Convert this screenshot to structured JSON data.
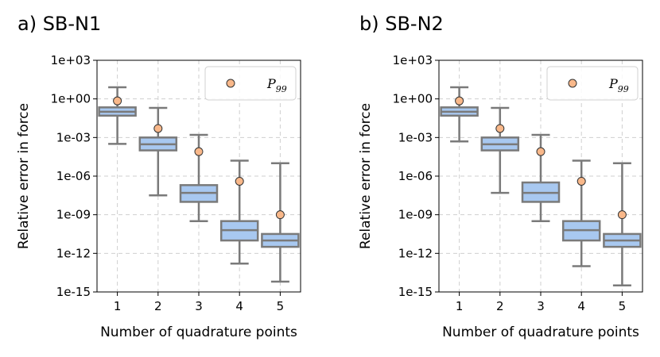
{
  "chart_data": [
    {
      "type": "box",
      "panel_title": "a) SB-N1",
      "xlabel": "Number of quadrature points",
      "ylabel": "Relative error in force",
      "yscale": "log",
      "ylim": [
        1e-15,
        1000.0
      ],
      "y_ticks": [
        "1e+03",
        "1e+00",
        "1e-03",
        "1e-06",
        "1e-09",
        "1e-12",
        "1e-15"
      ],
      "categories": [
        "1",
        "2",
        "3",
        "4",
        "5"
      ],
      "grid": true,
      "legend": {
        "position": "top-right",
        "entries": [
          {
            "label": "P",
            "subscript": "99",
            "marker": "circle"
          }
        ]
      },
      "box_color": "#a8c8f0",
      "edge_color": "#7a7a7a",
      "marker_color": "#f9b88a",
      "boxes": [
        {
          "whisker_low": 0.00032,
          "q1": 0.05,
          "median": 0.1,
          "q3": 0.22,
          "whisker_high": 8.0,
          "p99": 0.7
        },
        {
          "whisker_low": 3.2e-08,
          "q1": 0.0001,
          "median": 0.0003,
          "q3": 0.001,
          "whisker_high": 0.2,
          "p99": 0.005
        },
        {
          "whisker_low": 3.2e-10,
          "q1": 1e-08,
          "median": 5e-08,
          "q3": 2e-07,
          "whisker_high": 0.0016,
          "p99": 8e-05
        },
        {
          "whisker_low": 1.6e-13,
          "q1": 1e-11,
          "median": 6.3e-11,
          "q3": 3.2e-10,
          "whisker_high": 1.6e-05,
          "p99": 4e-07
        },
        {
          "whisker_low": 6.3e-15,
          "q1": 3.2e-12,
          "median": 1e-11,
          "q3": 3.2e-11,
          "whisker_high": 1e-05,
          "p99": 1e-09
        }
      ]
    },
    {
      "type": "box",
      "panel_title": "b) SB-N2",
      "xlabel": "Number of quadrature points",
      "ylabel": "Relative error in force",
      "yscale": "log",
      "ylim": [
        1e-15,
        1000.0
      ],
      "y_ticks": [
        "1e+03",
        "1e+00",
        "1e-03",
        "1e-06",
        "1e-09",
        "1e-12",
        "1e-15"
      ],
      "categories": [
        "1",
        "2",
        "3",
        "4",
        "5"
      ],
      "grid": true,
      "legend": {
        "position": "top-right",
        "entries": [
          {
            "label": "P",
            "subscript": "99",
            "marker": "circle"
          }
        ]
      },
      "box_color": "#a8c8f0",
      "edge_color": "#7a7a7a",
      "marker_color": "#f9b88a",
      "boxes": [
        {
          "whisker_low": 0.0005,
          "q1": 0.05,
          "median": 0.1,
          "q3": 0.22,
          "whisker_high": 8.0,
          "p99": 0.7
        },
        {
          "whisker_low": 5e-08,
          "q1": 0.0001,
          "median": 0.0003,
          "q3": 0.001,
          "whisker_high": 0.2,
          "p99": 0.005
        },
        {
          "whisker_low": 3.2e-10,
          "q1": 1e-08,
          "median": 5e-08,
          "q3": 3.2e-07,
          "whisker_high": 0.0016,
          "p99": 8e-05
        },
        {
          "whisker_low": 1e-13,
          "q1": 1e-11,
          "median": 6.3e-11,
          "q3": 3.2e-10,
          "whisker_high": 1.6e-05,
          "p99": 4e-07
        },
        {
          "whisker_low": 3.2e-15,
          "q1": 3.2e-12,
          "median": 1e-11,
          "q3": 3.2e-11,
          "whisker_high": 1e-05,
          "p99": 1e-09
        }
      ]
    }
  ]
}
